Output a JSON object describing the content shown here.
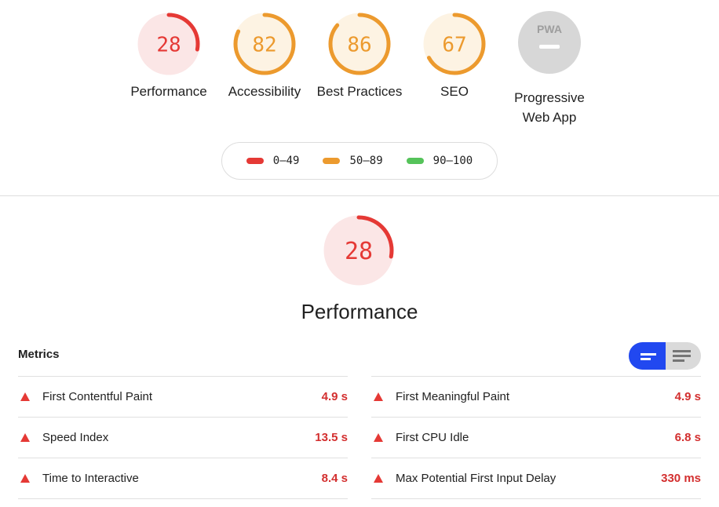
{
  "colors": {
    "fail": "#e53935",
    "average": "#ec9a2e",
    "pass": "#55c35a",
    "fail_bg": "#fbe6e6",
    "average_bg": "#fdf3e3",
    "pwa_bg": "#d7d7d7"
  },
  "categories": [
    {
      "label": "Performance",
      "score": 28,
      "score_text": "28",
      "rating": "fail"
    },
    {
      "label": "Accessibility",
      "score": 82,
      "score_text": "82",
      "rating": "average"
    },
    {
      "label": "Best Practices",
      "score": 86,
      "score_text": "86",
      "rating": "average"
    },
    {
      "label": "SEO",
      "score": 67,
      "score_text": "67",
      "rating": "average"
    },
    {
      "label": "Progressive Web App",
      "badge": "PWA",
      "rating": "na"
    }
  ],
  "legend": [
    {
      "range": "0–49",
      "rating": "fail"
    },
    {
      "range": "50–89",
      "rating": "average"
    },
    {
      "range": "90–100",
      "rating": "pass"
    }
  ],
  "performance": {
    "title": "Performance",
    "score": 28,
    "score_text": "28"
  },
  "metrics": {
    "heading": "Metrics",
    "toggle": {
      "selected": "compact-view",
      "icons": [
        "compact-view-icon",
        "expanded-view-icon"
      ]
    },
    "left": [
      {
        "name": "First Contentful Paint",
        "value": "4.9 s"
      },
      {
        "name": "Speed Index",
        "value": "13.5 s"
      },
      {
        "name": "Time to Interactive",
        "value": "8.4 s"
      }
    ],
    "right": [
      {
        "name": "First Meaningful Paint",
        "value": "4.9 s"
      },
      {
        "name": "First CPU Idle",
        "value": "6.8 s"
      },
      {
        "name": "Max Potential First Input Delay",
        "value": "330 ms"
      }
    ]
  }
}
